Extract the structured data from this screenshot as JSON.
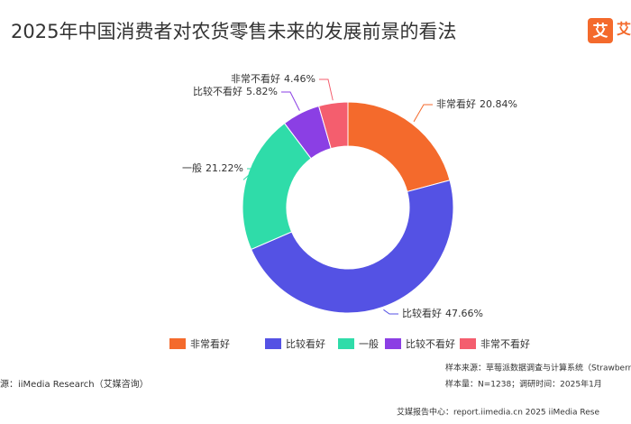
{
  "chart_data": {
    "type": "donut",
    "title": "2025年中国消费者对农货零售未来的发展前景的看法",
    "logo": "艾",
    "logo_text": "艾",
    "categories": [
      "非常看好",
      "比较看好",
      "一般",
      "比较不看好",
      "非常不看好"
    ],
    "values": [
      20.84,
      47.66,
      21.22,
      5.82,
      4.46
    ],
    "value_labels": [
      "20.84%",
      "47.66%",
      "21.22%",
      "5.82%",
      "4.46%"
    ],
    "colors": [
      "#f46a2c",
      "#5452e4",
      "#2fdca9",
      "#8b3fe4",
      "#f45e6e"
    ],
    "source": "源：iiMedia Research（艾媒咨询）",
    "sample_source": "样本来源：草莓派数据调查与计算系统（Strawberr",
    "sample_size": "样本量：N=1238；调研时间：2025年1月",
    "footer": "艾媒报告中心：report.iimedia.cn   2025  iiMedia Rese"
  }
}
